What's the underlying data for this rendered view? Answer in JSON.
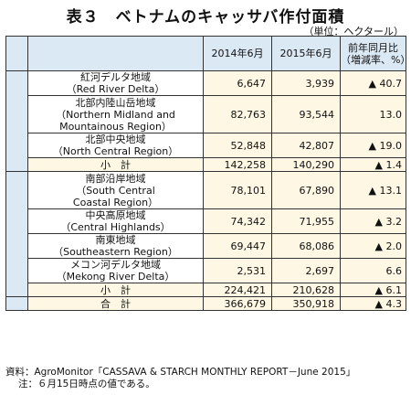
{
  "title": "表３　ベトナムのキャッサバ作付面積",
  "unit": "（単位：ヘクタール）",
  "headers": {
    "col2014": "2014年6月",
    "col2015": "2015年6月",
    "change_line1": "前年同月比",
    "change_line2": "（増減率、%）"
  },
  "rows": [
    {
      "name": [
        "紅河デルタ地域",
        "（Red River Delta）"
      ],
      "v2014": "6,647",
      "v2015": "3,939",
      "chg": "▲ 40.7"
    },
    {
      "name": [
        "北部内陸山岳地域",
        "（Northern Midland and",
        "Mountainous Region）"
      ],
      "v2014": "82,763",
      "v2015": "93,544",
      "chg": "13.0"
    },
    {
      "name": [
        "北部中央地域",
        "（North Central Region）"
      ],
      "v2014": "52,848",
      "v2015": "42,807",
      "chg": "▲ 19.0"
    },
    {
      "name": [
        "小　計"
      ],
      "v2014": "142,258",
      "v2015": "140,290",
      "chg": "▲ 1.4"
    },
    {
      "name": [
        "南部沿岸地域",
        "（South Central",
        "Coastal Region）"
      ],
      "v2014": "78,101",
      "v2015": "67,890",
      "chg": "▲ 13.1"
    },
    {
      "name": [
        "中央高原地域",
        "（Central Highlands）"
      ],
      "v2014": "74,342",
      "v2015": "71,955",
      "chg": "▲ 3.2"
    },
    {
      "name": [
        "南東地域",
        "（Southeastern Region）"
      ],
      "v2014": "69,447",
      "v2015": "68,086",
      "chg": "▲ 2.0"
    },
    {
      "name": [
        "メコン河デルタ地域",
        "（Mekong River Delta）"
      ],
      "v2014": "2,531",
      "v2015": "2,697",
      "chg": "6.6"
    },
    {
      "name": [
        "小　計"
      ],
      "v2014": "224,421",
      "v2015": "210,628",
      "chg": "▲ 6.1"
    },
    {
      "name": [
        "合　計"
      ],
      "v2014": "366,679",
      "v2015": "350,918",
      "chg": "▲ 4.3"
    }
  ],
  "footer": {
    "source": "資料：AgroMonitor「CASSAVA & STARCH MONTHLY REPORT－June 2015」",
    "note": "注：６月15日時点の値である。"
  }
}
